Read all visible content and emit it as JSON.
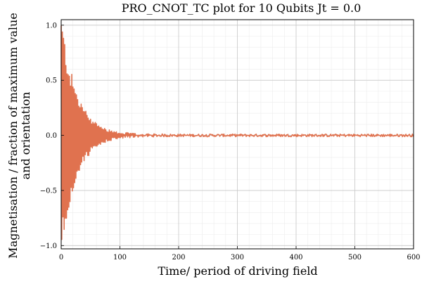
{
  "chart_data": {
    "type": "line",
    "title": "PRO_CNOT_TC plot for 10 Qubits Jt = 0.0",
    "xlabel": "Time/ period of driving field",
    "ylabel_line1": "Magnetisation / fraction of maximum value",
    "ylabel_line2": "and orientation",
    "xlim": [
      0,
      600
    ],
    "ylim": [
      -1.03,
      1.05
    ],
    "x_ticks": [
      0,
      100,
      200,
      300,
      400,
      500,
      600
    ],
    "x_tick_labels": [
      "0",
      "100",
      "200",
      "300",
      "400",
      "500",
      "600"
    ],
    "y_ticks": [
      -1.0,
      -0.5,
      0.0,
      0.5,
      1.0
    ],
    "y_tick_labels": [
      "−1.0",
      "−0.5",
      "0.0",
      "0.5",
      "1.0"
    ],
    "grid": true,
    "minor_grid": true,
    "legend": false,
    "series": [
      {
        "color": "#e0724f",
        "style": "alternating-oscillation",
        "x_start": 0,
        "x_end": 600,
        "x_step": 1,
        "initial_amplitude": 0.95,
        "decay_time": 26,
        "tail_noise": 0.012
      }
    ]
  }
}
